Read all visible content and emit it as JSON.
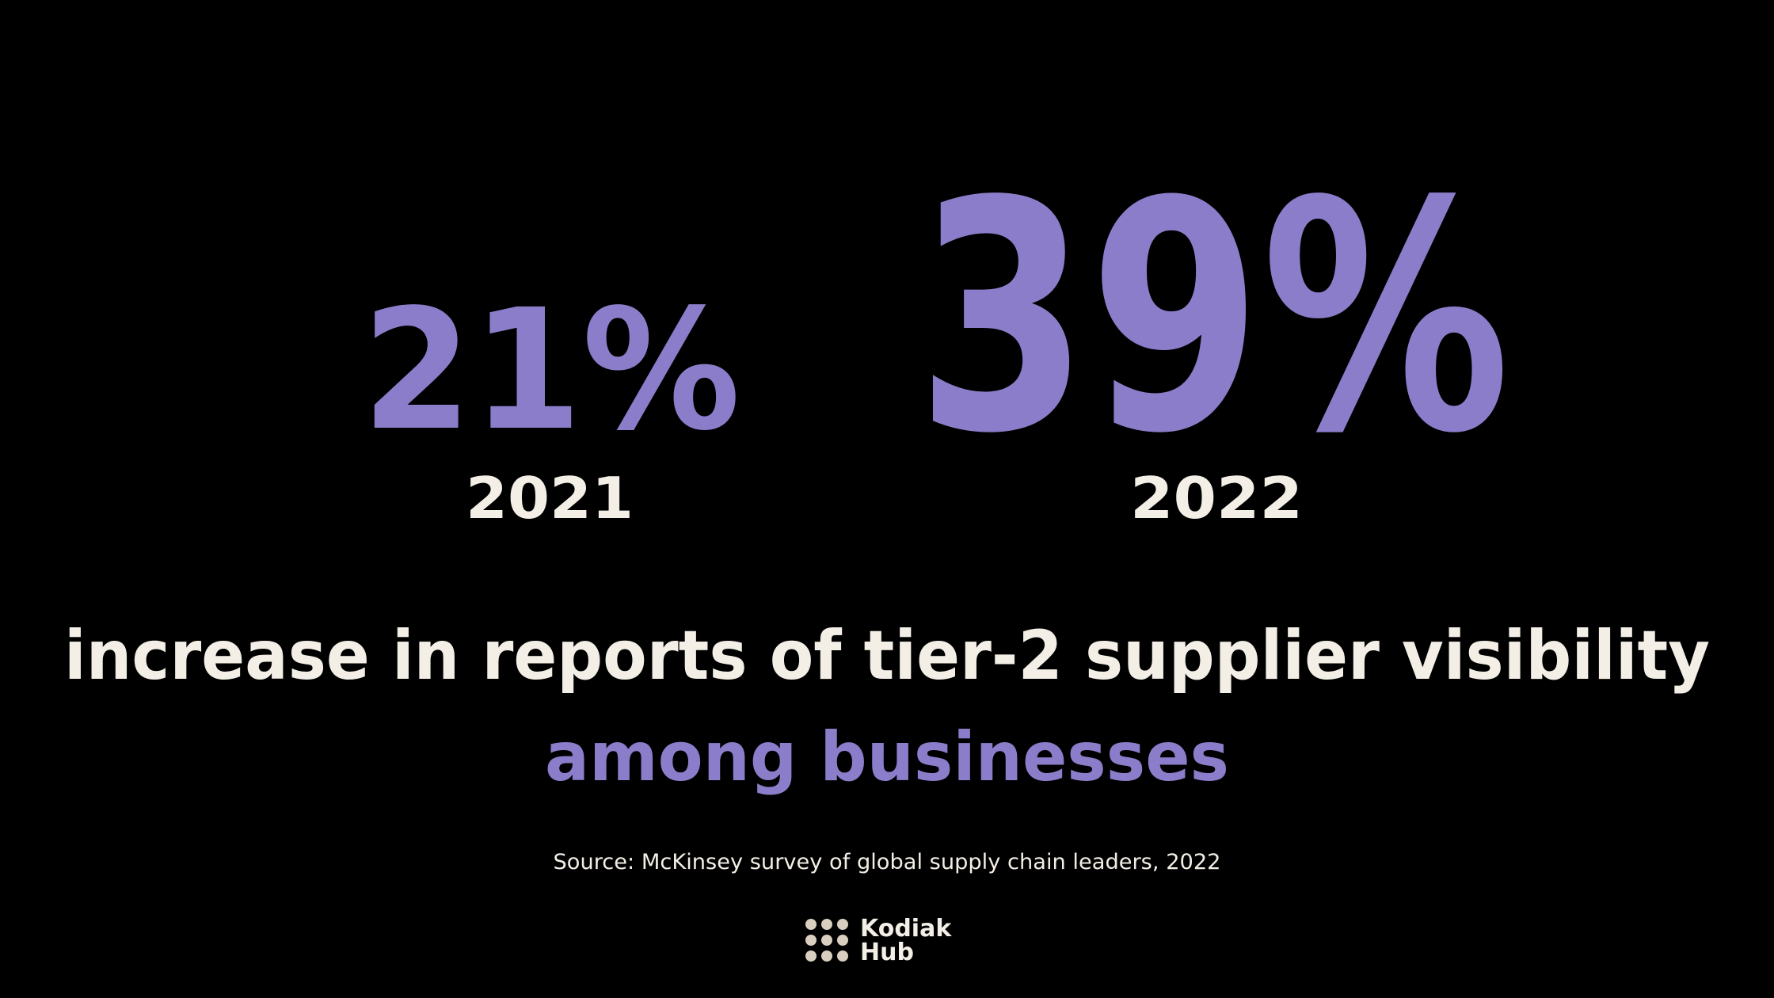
{
  "stats": [
    {
      "value": "21%",
      "year": "2021"
    },
    {
      "value": "39%",
      "year": "2022"
    }
  ],
  "headline": "increase in reports of tier-2 supplier visibility",
  "highlight": "among businesses",
  "source": "Source: McKinsey survey of global supply chain leaders, 2022",
  "logo": {
    "line1": "Kodiak",
    "line2": "Hub"
  }
}
